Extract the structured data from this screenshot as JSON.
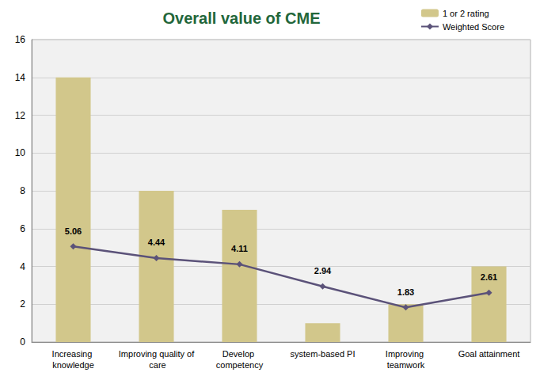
{
  "chart_data": {
    "type": "bar",
    "title": "Overall value of CME",
    "categories": [
      "Increasing knowledge",
      "Improving quality of care",
      "Develop competency",
      "system-based PI",
      "Improving teamwork",
      "Goal attainment"
    ],
    "series": [
      {
        "name": "1 or 2 rating",
        "type": "bar",
        "color": "#d2c78b",
        "values": [
          14,
          8,
          7,
          1,
          2,
          4
        ]
      },
      {
        "name": "Weighted Score",
        "type": "line",
        "color": "#5b5279",
        "marker": "diamond",
        "data_labels": true,
        "values": [
          5.06,
          4.44,
          4.11,
          2.94,
          1.83,
          2.61
        ]
      }
    ],
    "ylim": [
      0,
      16
    ],
    "yticks": [
      0,
      2,
      4,
      6,
      8,
      10,
      12,
      14,
      16
    ],
    "grid": true,
    "legend": "top-right"
  }
}
